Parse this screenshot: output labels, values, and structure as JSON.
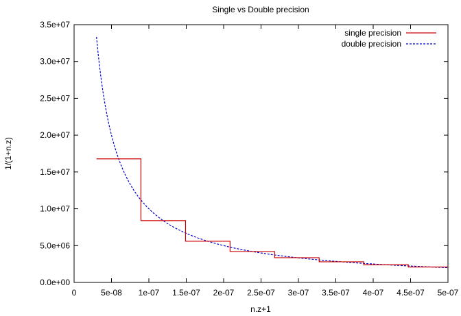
{
  "chart_data": {
    "type": "line",
    "title": "Single vs Double precision",
    "xlabel": "n.z+1",
    "ylabel": "1/(1+n.z)",
    "xlim": [
      0,
      5e-07
    ],
    "ylim": [
      0,
      35000000
    ],
    "x_ticks": [
      "0",
      "5e-08",
      "1e-07",
      "1.5e-07",
      "2e-07",
      "2.5e-07",
      "3e-07",
      "3.5e-07",
      "4e-07",
      "4.5e-07",
      "5e-07"
    ],
    "x_tick_values": [
      0,
      5e-08,
      1e-07,
      1.5e-07,
      2e-07,
      2.5e-07,
      3e-07,
      3.5e-07,
      4e-07,
      4.5e-07,
      5e-07
    ],
    "y_ticks": [
      "0.0e+00",
      "5.0e+06",
      "1.0e+07",
      "1.5e+07",
      "2.0e+07",
      "2.5e+07",
      "3.0e+07",
      "3.5e+07"
    ],
    "y_tick_values": [
      0,
      5000000,
      10000000,
      15000000,
      20000000,
      25000000,
      30000000,
      35000000
    ],
    "legend_position": "top-right",
    "grid": false,
    "series": [
      {
        "name": "single precision",
        "color": "#cc0000",
        "style": "solid",
        "kind": "step",
        "x": [
          3e-08,
          8.94e-08,
          8.94e-08,
          1.49e-07,
          1.49e-07,
          2.086e-07,
          2.086e-07,
          2.682e-07,
          2.682e-07,
          3.278e-07,
          3.278e-07,
          3.874e-07,
          3.874e-07,
          4.47e-07,
          4.47e-07,
          5e-07
        ],
        "y": [
          16777216,
          16777216,
          8388608,
          8388608,
          5592405,
          5592405,
          4194304,
          4194304,
          3355443,
          3355443,
          2796203,
          2796203,
          2396745,
          2396745,
          2097152,
          2097152
        ]
      },
      {
        "name": "double precision",
        "color": "#0000cc",
        "style": "dashed",
        "kind": "reciprocal",
        "x_start": 3e-08,
        "x_end": 5e-07
      }
    ]
  }
}
